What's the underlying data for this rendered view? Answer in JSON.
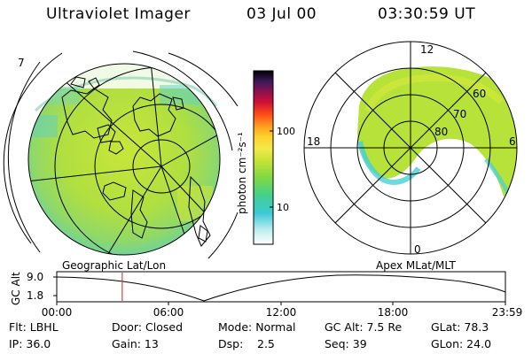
{
  "header": {
    "title": "Ultraviolet Imager",
    "date": "03 Jul 00",
    "time": "03:30:59 UT"
  },
  "colorbar": {
    "unit_label": "photon cm⁻²s⁻¹",
    "tick_100": "100",
    "tick_10": "10"
  },
  "left_map": {
    "label": "Geographic Lat/Lon",
    "edge_number": "7"
  },
  "right_map": {
    "label": "Apex MLat/MLT",
    "mlt_12": "12",
    "mlt_18": "18",
    "mlt_6": "6",
    "mlt_0": "0",
    "lat_60": "60",
    "lat_70": "70",
    "lat_80": "80"
  },
  "altitude_plot": {
    "axis_label": "GC Alt",
    "y_top": "9.0",
    "y_bottom": "1.8",
    "x_ticks": [
      "00:00",
      "06:00",
      "12:00",
      "18:00",
      "23:59"
    ],
    "current_time_fraction": 0.146
  },
  "info": {
    "filter": "Flt: LBHL",
    "door": "Door: Closed",
    "mode": "Mode: Normal",
    "gc_alt": "GC Alt: 7.5 Re",
    "glat": "GLat: 78.3",
    "ip": "IP: 36.0",
    "gain": "Gain: 13",
    "dsp_label": "Dsp:",
    "dsp_value": "2.5",
    "seq": "Seq: 39",
    "glon": "GLon: 24.0"
  },
  "colors": {
    "aurora_main": "#b6e23a",
    "aurora_edge": "#45d0d8",
    "marker": "#cc2222"
  }
}
